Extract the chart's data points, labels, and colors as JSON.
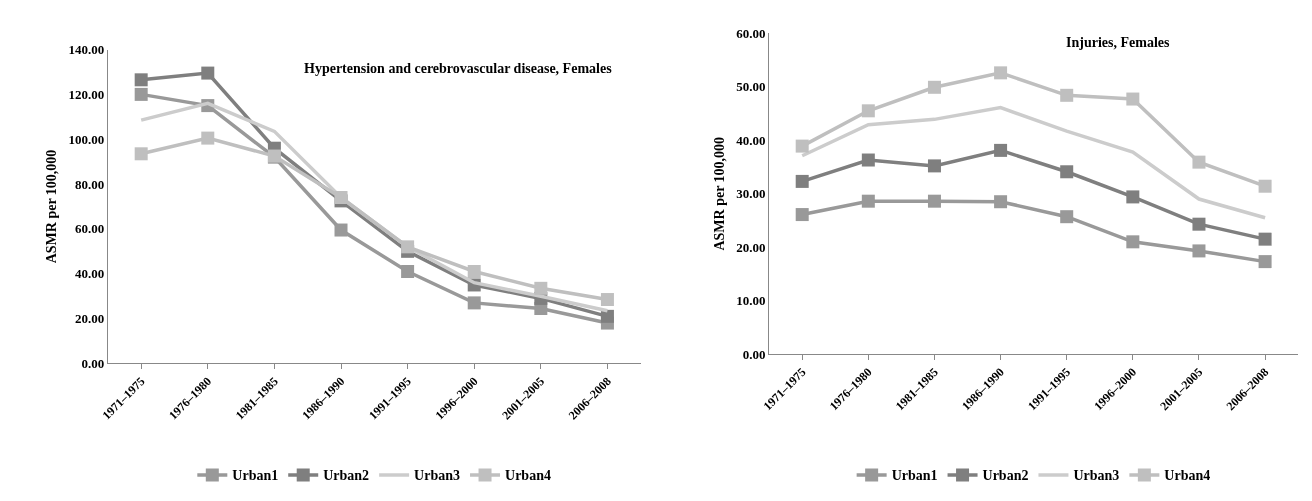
{
  "chart_data": [
    {
      "type": "line",
      "title": "Hypertension and cerebrovascular disease, Females",
      "ylabel": "ASMR per 100,000",
      "categories": [
        "1971–1975",
        "1976–1980",
        "1981–1985",
        "1986–1990",
        "1991–1995",
        "1996–2000",
        "2001–2005",
        "2006–2008"
      ],
      "series": [
        {
          "name": "Urban1",
          "color": "#999999",
          "marker": "square",
          "values": [
            120,
            115,
            92,
            59.5,
            41,
            27,
            24.5,
            18
          ]
        },
        {
          "name": "Urban2",
          "color": "#7f7f7f",
          "marker": "square",
          "values": [
            126.5,
            129.5,
            96,
            72.5,
            50,
            35,
            29,
            21
          ]
        },
        {
          "name": "Urban3",
          "color": "#cccccc",
          "marker": "none",
          "values": [
            108.5,
            116,
            103.5,
            74,
            52,
            36,
            30,
            23.5
          ]
        },
        {
          "name": "Urban4",
          "color": "#bfbfbf",
          "marker": "square",
          "values": [
            93.5,
            100.5,
            92.5,
            74,
            52,
            41,
            33.5,
            28.5
          ]
        }
      ],
      "ylim": [
        0,
        140
      ],
      "yticks": [
        {
          "value": 0,
          "label": "0.00"
        },
        {
          "value": 20,
          "label": "20.00"
        },
        {
          "value": 40,
          "label": "40.00"
        },
        {
          "value": 60,
          "label": "60.00"
        },
        {
          "value": 80,
          "label": "80.00"
        },
        {
          "value": 100,
          "label": "100.00"
        },
        {
          "value": 120,
          "label": "120.00"
        },
        {
          "value": 140,
          "label": "140.00"
        }
      ],
      "legend": "bottom"
    },
    {
      "type": "line",
      "title": "Injuries, Females",
      "ylabel": "ASMR per 100,000",
      "categories": [
        "1971–1975",
        "1976–1980",
        "1981–1985",
        "1986–1990",
        "1991–1995",
        "1996–2000",
        "2001–2005",
        "2006–2008"
      ],
      "series": [
        {
          "name": "Urban1",
          "color": "#999999",
          "marker": "square",
          "values": [
            26.1,
            28.6,
            28.6,
            28.5,
            25.7,
            21.0,
            19.3,
            17.3
          ]
        },
        {
          "name": "Urban2",
          "color": "#7f7f7f",
          "marker": "square",
          "values": [
            32.3,
            36.3,
            35.2,
            38.1,
            34.1,
            29.4,
            24.3,
            21.5
          ]
        },
        {
          "name": "Urban3",
          "color": "#cccccc",
          "marker": "none",
          "values": [
            37.1,
            42.9,
            43.9,
            46.1,
            41.7,
            37.8,
            29.0,
            25.5
          ]
        },
        {
          "name": "Urban4",
          "color": "#bfbfbf",
          "marker": "square",
          "values": [
            38.9,
            45.5,
            49.9,
            52.6,
            48.4,
            47.7,
            35.9,
            31.4
          ]
        }
      ],
      "ylim": [
        0,
        60
      ],
      "yticks": [
        {
          "value": 0,
          "label": "0.00"
        },
        {
          "value": 10,
          "label": "10.00"
        },
        {
          "value": 20,
          "label": "20.00"
        },
        {
          "value": 30,
          "label": "30.00"
        },
        {
          "value": 40,
          "label": "40.00"
        },
        {
          "value": 50,
          "label": "50.00"
        },
        {
          "value": 60,
          "label": "60.00"
        }
      ],
      "legend": "bottom"
    }
  ]
}
